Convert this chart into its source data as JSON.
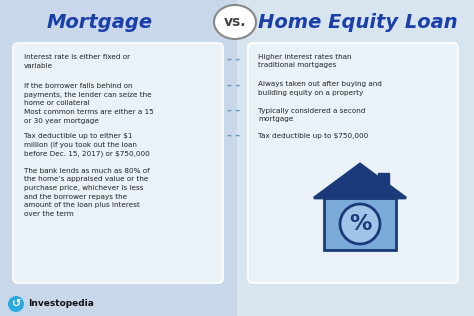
{
  "bg_left_color": "#c8d8ea",
  "bg_right_color": "#d8e4ee",
  "card_color": "#eaf2f8",
  "title_left": "Mortgage",
  "title_right": "Home Equity Loan",
  "vs_text": "vs.",
  "title_color": "#1a3faa",
  "vs_color": "#444444",
  "left_bullets": [
    "Interest rate is either fixed or\nvariable",
    "If the borrower falls behind on\npayments, the lender can seize the\nhome or collateral",
    "Most common terms are either a 15\nor 30 year mortgage",
    "Tax deductible up to either $1\nmillion (if you took out the loan\nbefore Dec. 15, 2017) or $750,000",
    "The bank lends as much as 80% of\nthe home’s appraised value or the\npurchase price, whichever is less\nand the borrower repays the\namount of the loan plus interest\nover the term"
  ],
  "right_bullets": [
    "Higher interest rates than\ntraditional mortgages",
    "Always taken out after buying and\nbuilding equity on a property",
    "Typically considered a second\nmortgage",
    "Tax deductible up to $750,000"
  ],
  "dash_color": "#6699bb",
  "text_color": "#222222",
  "investopedia_text": "Investopedia",
  "house_roof_color": "#1a3a7a",
  "house_wall_color": "#7aaad8",
  "house_wall_light": "#a0c4e8",
  "percent_color": "#1a3a7a",
  "card_border": "#ffffff"
}
